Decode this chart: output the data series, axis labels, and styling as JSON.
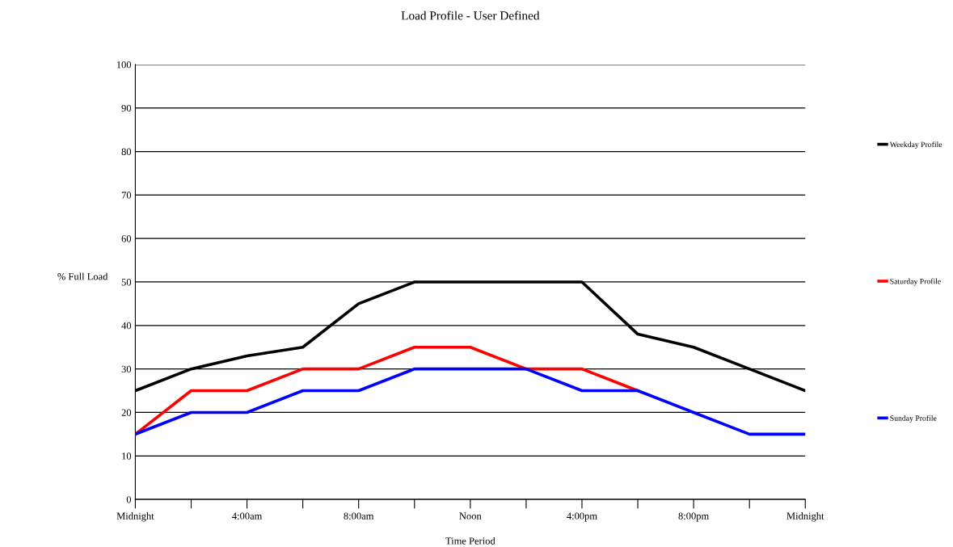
{
  "chart_data": {
    "type": "line",
    "title": "Load Profile - User Defined",
    "xlabel": "Time Period",
    "ylabel": "% Full Load",
    "x": [
      0,
      2,
      4,
      6,
      8,
      10,
      12,
      14,
      16,
      18,
      20,
      22,
      24
    ],
    "series": [
      {
        "name": "Weekday Profile",
        "color": "#000000",
        "values": [
          25,
          30,
          33,
          35,
          45,
          50,
          50,
          50,
          50,
          38,
          35,
          30,
          25
        ]
      },
      {
        "name": "Saturday Profile",
        "color": "#ff0000",
        "values": [
          15,
          25,
          25,
          30,
          30,
          35,
          35,
          30,
          30,
          25,
          null,
          null,
          null
        ]
      },
      {
        "name": "Sunday Profile",
        "color": "#0000ff",
        "values": [
          15,
          20,
          20,
          25,
          25,
          30,
          30,
          30,
          25,
          25,
          20,
          15,
          15
        ]
      }
    ],
    "xlim": [
      0,
      24
    ],
    "xticks": [
      {
        "value": 0,
        "label": "Midnight"
      },
      {
        "value": 2,
        "label": null
      },
      {
        "value": 4,
        "label": "4:00am"
      },
      {
        "value": 6,
        "label": null
      },
      {
        "value": 8,
        "label": "8:00am"
      },
      {
        "value": 10,
        "label": null
      },
      {
        "value": 12,
        "label": "Noon"
      },
      {
        "value": 14,
        "label": null
      },
      {
        "value": 16,
        "label": "4:00pm"
      },
      {
        "value": 18,
        "label": null
      },
      {
        "value": 20,
        "label": "8:00pm"
      },
      {
        "value": 22,
        "label": null
      },
      {
        "value": 24,
        "label": "Midnight"
      }
    ],
    "ylim": [
      0,
      100
    ],
    "yticks": [
      0,
      10,
      20,
      30,
      40,
      50,
      60,
      70,
      80,
      90,
      100
    ],
    "grid": "y",
    "legend": "right",
    "marker": "none",
    "line_style": "solid"
  }
}
